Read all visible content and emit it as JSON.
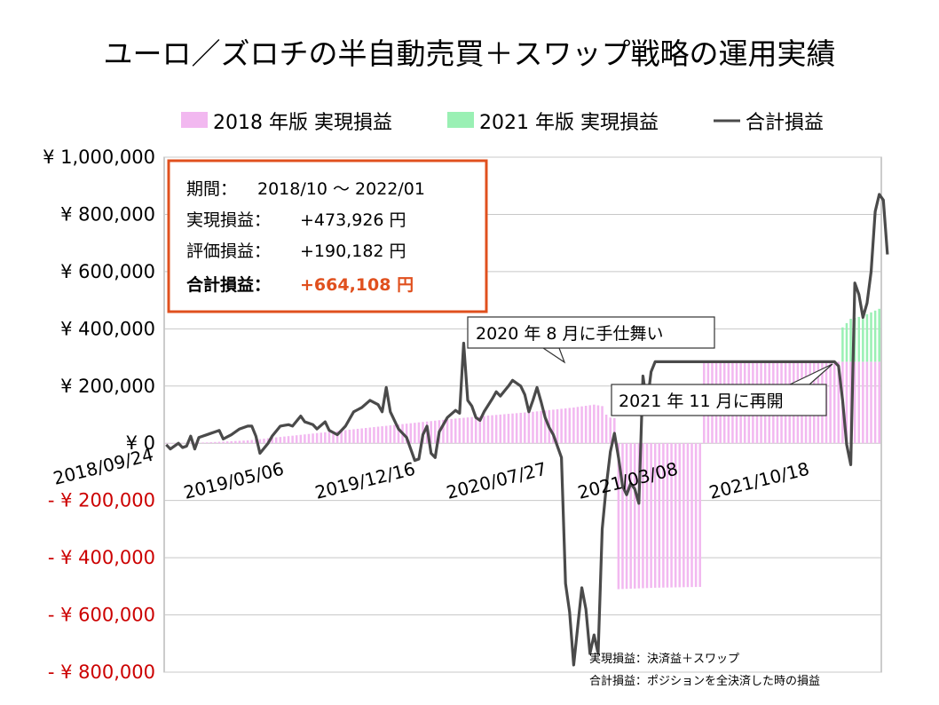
{
  "title": "ユーロ／ズロチの半自動売買＋スワップ戦略の運用実績",
  "colors": {
    "realized_2018": "#f2b8f0",
    "realized_2021": "#9af0b4",
    "total_line": "#4a4a4a",
    "negative_tick": "#cc0000",
    "info_border": "#e0501e",
    "info_highlight": "#e0501e",
    "grid": "#c8c8c8"
  },
  "info_box": {
    "period_label": "期間：",
    "period_value": "2018/10 〜 2022/01",
    "realized_label": "実現損益：",
    "realized_value": "+473,926 円",
    "unrealized_label": "評価損益：",
    "unrealized_value": "+190,182 円",
    "total_label": "合計損益：",
    "total_value": "+664,108 円"
  },
  "annotations": {
    "stop": "2020 年 8 月に手仕舞い",
    "restart": "2021 年 11 月に再開"
  },
  "notes": [
    "実現損益：決済益＋スワップ",
    "合計損益：ポジションを全決済した時の損益"
  ],
  "chart_data": {
    "type": "bar",
    "legend_position": "top",
    "grid": true,
    "ylim": [
      -800000,
      1000000
    ],
    "ytick_values": [
      1000000,
      800000,
      600000,
      400000,
      200000,
      0,
      -200000,
      -400000,
      -600000,
      -800000
    ],
    "ytick_labels": [
      "¥ 1,000,000",
      "¥ 800,000",
      "¥ 600,000",
      "¥ 400,000",
      "¥ 200,000",
      "¥ 0",
      "- ¥ 200,000",
      "- ¥ 400,000",
      "- ¥ 600,000",
      "- ¥ 800,000"
    ],
    "xtick_labels": [
      "2018/09/24",
      "2019/05/06",
      "2019/12/16",
      "2020/07/27",
      "2021/03/08",
      "2021/10/18"
    ],
    "week_count": 176,
    "series": [
      {
        "name": "2018 年版 実現損益",
        "kind": "bar",
        "knots": [
          [
            0,
            0
          ],
          [
            10,
            3000
          ],
          [
            20,
            10000
          ],
          [
            30,
            25000
          ],
          [
            40,
            40000
          ],
          [
            50,
            55000
          ],
          [
            60,
            70000
          ],
          [
            70,
            85000
          ],
          [
            80,
            98000
          ],
          [
            90,
            110000
          ],
          [
            100,
            125000
          ],
          [
            105,
            135000
          ],
          [
            107,
            130000
          ],
          [
            108,
            100000
          ],
          [
            109,
            90000
          ],
          [
            110,
            88000
          ],
          [
            111,
            -510000
          ],
          [
            120,
            -505000
          ],
          [
            131,
            -502000
          ],
          [
            132,
            285000
          ],
          [
            175,
            285000
          ]
        ]
      },
      {
        "name": "2021 年版 実現損益",
        "kind": "bar",
        "knots": [
          [
            0,
            0
          ],
          [
            165,
            0
          ],
          [
            166,
            120000
          ],
          [
            168,
            150000
          ],
          [
            171,
            160000
          ],
          [
            175,
            185000
          ]
        ]
      },
      {
        "name": "合計損益",
        "kind": "line",
        "knots": [
          [
            0,
            -5000
          ],
          [
            1,
            -20000
          ],
          [
            3,
            0
          ],
          [
            4,
            -15000
          ],
          [
            5,
            -10000
          ],
          [
            6,
            25000
          ],
          [
            7,
            -20000
          ],
          [
            8,
            20000
          ],
          [
            10,
            30000
          ],
          [
            12,
            40000
          ],
          [
            13,
            45000
          ],
          [
            14,
            15000
          ],
          [
            16,
            30000
          ],
          [
            18,
            50000
          ],
          [
            20,
            60000
          ],
          [
            21,
            60000
          ],
          [
            22,
            25000
          ],
          [
            23,
            -35000
          ],
          [
            25,
            0
          ],
          [
            26,
            25000
          ],
          [
            28,
            60000
          ],
          [
            30,
            65000
          ],
          [
            31,
            60000
          ],
          [
            33,
            95000
          ],
          [
            34,
            75000
          ],
          [
            36,
            65000
          ],
          [
            37,
            50000
          ],
          [
            39,
            75000
          ],
          [
            40,
            45000
          ],
          [
            42,
            30000
          ],
          [
            44,
            60000
          ],
          [
            46,
            110000
          ],
          [
            48,
            125000
          ],
          [
            50,
            150000
          ],
          [
            52,
            135000
          ],
          [
            53,
            110000
          ],
          [
            54,
            195000
          ],
          [
            55,
            110000
          ],
          [
            57,
            50000
          ],
          [
            59,
            20000
          ],
          [
            61,
            -60000
          ],
          [
            62,
            -55000
          ],
          [
            63,
            30000
          ],
          [
            64,
            60000
          ],
          [
            65,
            -35000
          ],
          [
            66,
            -50000
          ],
          [
            67,
            40000
          ],
          [
            69,
            90000
          ],
          [
            71,
            115000
          ],
          [
            72,
            105000
          ],
          [
            73,
            350000
          ],
          [
            74,
            150000
          ],
          [
            75,
            130000
          ],
          [
            76,
            90000
          ],
          [
            77,
            80000
          ],
          [
            78,
            110000
          ],
          [
            80,
            155000
          ],
          [
            81,
            180000
          ],
          [
            82,
            165000
          ],
          [
            84,
            200000
          ],
          [
            85,
            220000
          ],
          [
            87,
            200000
          ],
          [
            88,
            170000
          ],
          [
            89,
            110000
          ],
          [
            90,
            150000
          ],
          [
            91,
            195000
          ],
          [
            92,
            145000
          ],
          [
            93,
            90000
          ],
          [
            94,
            55000
          ],
          [
            95,
            30000
          ],
          [
            97,
            -50000
          ],
          [
            98,
            -490000
          ],
          [
            99,
            -590000
          ],
          [
            100,
            -775000
          ],
          [
            102,
            -505000
          ],
          [
            103,
            -580000
          ],
          [
            104,
            -735000
          ],
          [
            105,
            -670000
          ],
          [
            106,
            -735000
          ],
          [
            107,
            -300000
          ],
          [
            108,
            -150000
          ],
          [
            109,
            -30000
          ],
          [
            110,
            35000
          ],
          [
            111,
            -50000
          ],
          [
            112,
            -150000
          ],
          [
            113,
            -180000
          ],
          [
            114,
            -140000
          ],
          [
            115,
            -160000
          ],
          [
            116,
            -210000
          ],
          [
            117,
            235000
          ],
          [
            118,
            135000
          ],
          [
            119,
            250000
          ],
          [
            120,
            285000
          ],
          [
            164,
            285000
          ],
          [
            165,
            270000
          ],
          [
            166,
            150000
          ],
          [
            167,
            -5000
          ],
          [
            168,
            -75000
          ],
          [
            169,
            560000
          ],
          [
            170,
            520000
          ],
          [
            171,
            440000
          ],
          [
            172,
            490000
          ],
          [
            173,
            600000
          ],
          [
            174,
            810000
          ],
          [
            175,
            870000
          ],
          [
            176,
            850000
          ],
          [
            177,
            660000
          ]
        ]
      }
    ]
  }
}
